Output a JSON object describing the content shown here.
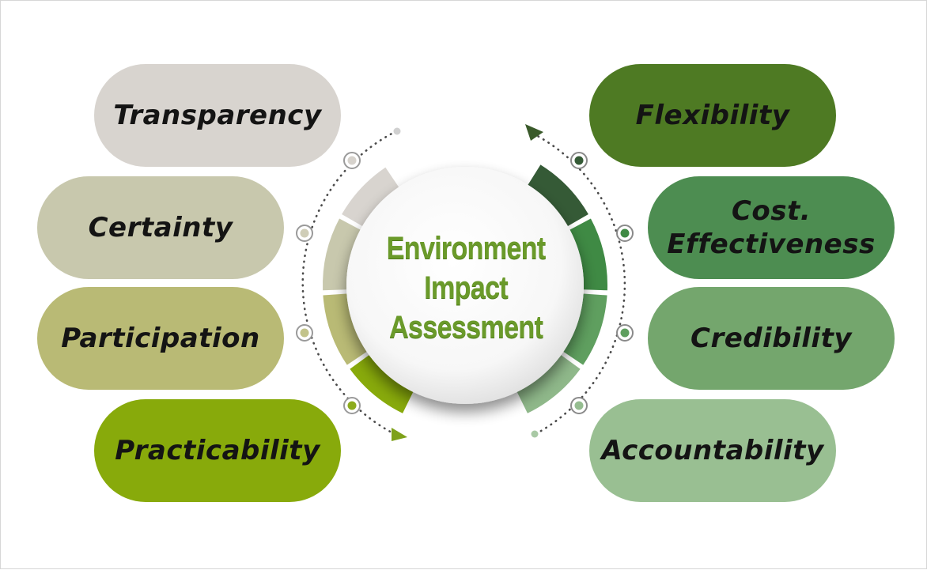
{
  "center": {
    "line1": "Environment",
    "line2": "Impact",
    "line3": "Assessment",
    "color": "#6a9a2a"
  },
  "left_items": [
    {
      "label": "Transparency",
      "color": "#d8d4cf"
    },
    {
      "label": "Certainty",
      "color": "#c8c8ad"
    },
    {
      "label": "Participation",
      "color": "#b9ba75"
    },
    {
      "label": "Practicability",
      "color": "#88aa0b"
    }
  ],
  "right_items": [
    {
      "label": "Flexibility",
      "color": "#4e7a23"
    },
    {
      "label": "Cost.\nEffectiveness",
      "color": "#4d8d51"
    },
    {
      "label": "Credibility",
      "color": "#74a66d"
    },
    {
      "label": "Accountability",
      "color": "#99bf92"
    }
  ]
}
